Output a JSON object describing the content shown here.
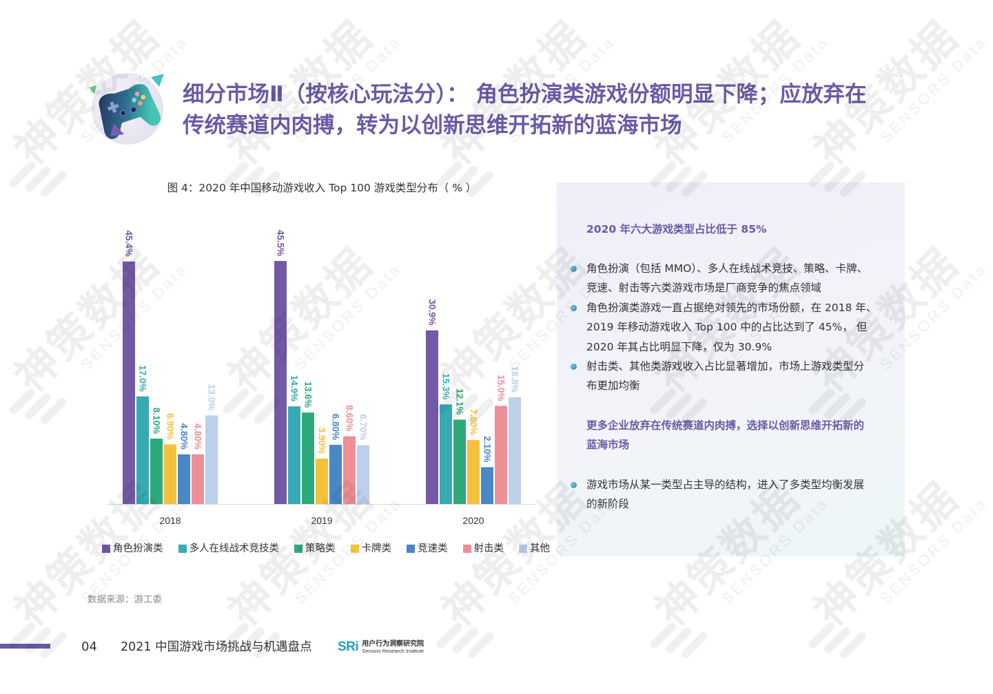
{
  "header": {
    "title_line1": "细分市场Ⅱ（按核心玩法分）： 角色扮演类游戏份额明显下降；应放弃在",
    "title_line2": "传统赛道内肉搏，转为以创新思维开拓新的蓝海市场",
    "title_color": "#6b5aa6",
    "icon": "game-controller-icon"
  },
  "chart_data": {
    "type": "bar",
    "title": "图 4：2020 年中国移动游戏收入 Top 100 游戏类型分布（ % ）",
    "xlabel": "",
    "ylabel": "",
    "categories": [
      "2018",
      "2019",
      "2020"
    ],
    "legend": "bottom",
    "grid": false,
    "series": [
      {
        "name": "角色扮演类",
        "color": "#7459a6",
        "values": [
          45.4,
          45.5,
          30.9
        ],
        "labels": [
          "45.4%",
          "45.5%",
          "30.9%"
        ]
      },
      {
        "name": "多人在线战术竞技类",
        "color": "#37abb3",
        "values": [
          17.0,
          14.9,
          15.3
        ],
        "labels": [
          "17.0%",
          "14.9%",
          "15.3%"
        ]
      },
      {
        "name": "策略类",
        "color": "#2ea97b",
        "values": [
          8.1,
          13.6,
          12.1
        ],
        "labels": [
          "8.10%",
          "13.6%",
          "12.1%"
        ]
      },
      {
        "name": "卡牌类",
        "color": "#f4c13b",
        "values": [
          6.9,
          3.9,
          7.8
        ],
        "labels": [
          "6.90%",
          "3.90%",
          "7.80%"
        ]
      },
      {
        "name": "竞速类",
        "color": "#4a87c6",
        "values": [
          4.8,
          6.8,
          2.1
        ],
        "labels": [
          "4.80%",
          "6.80%",
          "2.10%"
        ]
      },
      {
        "name": "射击类",
        "color": "#ee8f97",
        "values": [
          4.8,
          8.6,
          15.0
        ],
        "labels": [
          "4.80%",
          "8.60%",
          "15.0%"
        ]
      },
      {
        "name": "其他",
        "color": "#bccfeb",
        "values": [
          13.0,
          6.7,
          16.8
        ],
        "labels": [
          "13.0%",
          "6.70%",
          "16.8%"
        ]
      }
    ]
  },
  "panel": {
    "heading1": "2020 年六大游戏类型占比低于 85%",
    "bullets1": [
      "角色扮演（包括 MMO）、多人在线战术竞技、策略、卡牌、\n竞速、射击等六类游戏市场是厂商竞争的焦点领域",
      "角色扮演类游戏一直占据绝对领先的市场份额，在 2018 年、\n2019 年移动游戏收入 Top 100 中的占比达到了 45%， 但\n2020 年其占比明显下降，仅为 30.9%",
      "射击类、其他类游戏收入占比显著增加，市场上游戏类型分\n布更加均衡"
    ],
    "heading2": "更多企业放弃在传统赛道内肉搏，选择以创新思维开拓新的\n蓝海市场",
    "bullets2": [
      "游戏市场从某一类型占主导的结构，进入了多类型均衡发展\n的新阶段"
    ],
    "bullet_color": "#2e7fbe"
  },
  "source": "数据来源：游工委",
  "footer": {
    "page_number": "04",
    "report_title": "2021 中国游戏市场挑战与机遇盘点",
    "accent_color": "#6b5aa6"
  },
  "logo": {
    "mark": "SRi",
    "name_cn": "用户行为洞察研究院",
    "name_en": "Sensors Research Institute"
  },
  "watermark": {
    "cn": "神策数据",
    "en": "SENSORS Data"
  }
}
